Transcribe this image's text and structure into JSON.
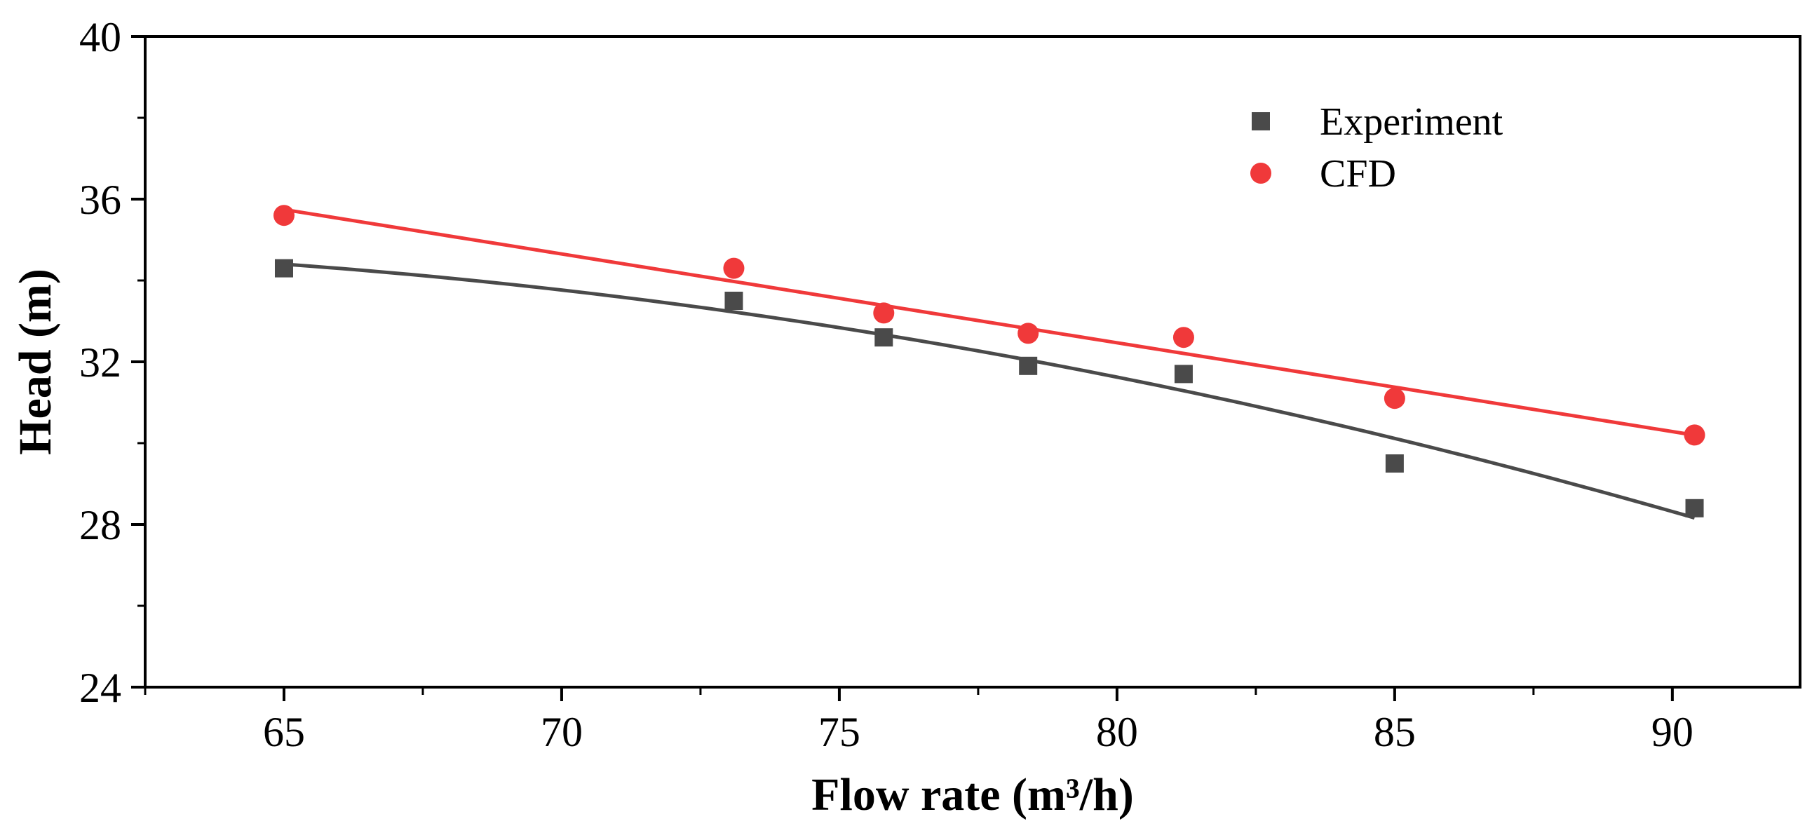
{
  "chart_data": {
    "type": "scatter",
    "title": "",
    "xlabel": "Flow rate (m³/h)",
    "ylabel": "Head (m)",
    "xlim": [
      62.5,
      92.3
    ],
    "ylim": [
      24,
      40
    ],
    "xticks": [
      65,
      70,
      75,
      80,
      85,
      90
    ],
    "yticks": [
      24,
      28,
      32,
      36,
      40
    ],
    "x_minor_step": 2.5,
    "y_minor_step": 2,
    "grid": false,
    "legend_position": "top-right",
    "series": [
      {
        "name": "Experiment",
        "marker": "square",
        "color": "#4a4a4a",
        "x": [
          65.0,
          73.1,
          75.8,
          78.4,
          81.2,
          85.0,
          90.4
        ],
        "y": [
          34.3,
          33.5,
          32.6,
          31.9,
          31.7,
          29.5,
          28.4
        ],
        "fit": {
          "kind": "quadratic",
          "color": "#4a4a4a"
        }
      },
      {
        "name": "CFD",
        "marker": "circle",
        "color": "#f0393a",
        "x": [
          65.0,
          73.1,
          75.8,
          78.4,
          81.2,
          85.0,
          90.4
        ],
        "y": [
          35.6,
          34.3,
          33.2,
          32.7,
          32.6,
          31.1,
          30.2
        ],
        "fit": {
          "kind": "linear",
          "color": "#f0393a"
        }
      }
    ]
  }
}
